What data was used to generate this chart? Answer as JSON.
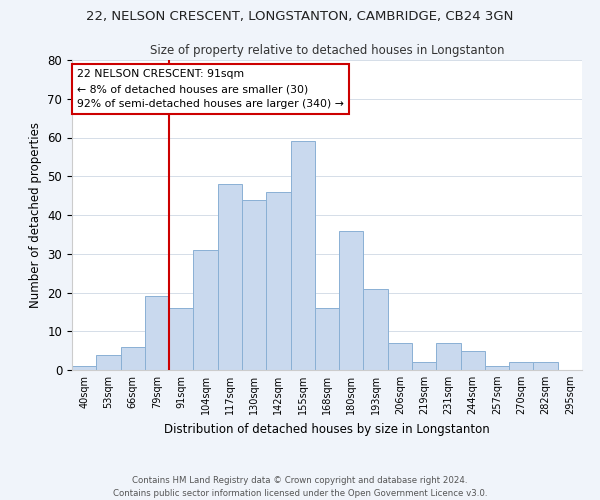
{
  "title_line1": "22, NELSON CRESCENT, LONGSTANTON, CAMBRIDGE, CB24 3GN",
  "title_line2": "Size of property relative to detached houses in Longstanton",
  "xlabel": "Distribution of detached houses by size in Longstanton",
  "ylabel": "Number of detached properties",
  "bin_labels": [
    "40sqm",
    "53sqm",
    "66sqm",
    "79sqm",
    "91sqm",
    "104sqm",
    "117sqm",
    "130sqm",
    "142sqm",
    "155sqm",
    "168sqm",
    "180sqm",
    "193sqm",
    "206sqm",
    "219sqm",
    "231sqm",
    "244sqm",
    "257sqm",
    "270sqm",
    "282sqm",
    "295sqm"
  ],
  "bar_heights": [
    1,
    4,
    6,
    19,
    16,
    31,
    48,
    44,
    46,
    59,
    16,
    36,
    21,
    7,
    2,
    7,
    5,
    1,
    2,
    2,
    0
  ],
  "bar_color": "#c9d9ee",
  "bar_edge_color": "#8ab0d4",
  "vline_x": 4,
  "vline_color": "#cc0000",
  "annotation_text_line1": "22 NELSON CRESCENT: 91sqm",
  "annotation_text_line2": "← 8% of detached houses are smaller (30)",
  "annotation_text_line3": "92% of semi-detached houses are larger (340) →",
  "annotation_box_color": "#cc0000",
  "ylim": [
    0,
    80
  ],
  "yticks": [
    0,
    10,
    20,
    30,
    40,
    50,
    60,
    70,
    80
  ],
  "footer_line1": "Contains HM Land Registry data © Crown copyright and database right 2024.",
  "footer_line2": "Contains public sector information licensed under the Open Government Licence v3.0.",
  "background_color": "#f0f4fa",
  "plot_background": "#ffffff",
  "grid_color": "#d5dde8"
}
